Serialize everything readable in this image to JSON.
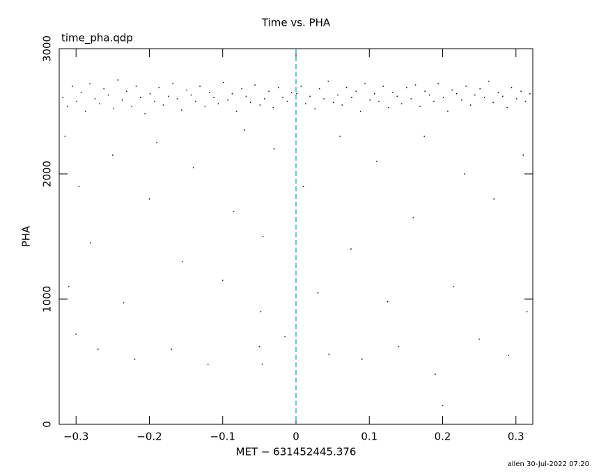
{
  "chart_data": {
    "type": "scatter",
    "title": "Time vs. PHA",
    "annotation": "time_pha.qdp",
    "x_label": "MET − 631452445.376",
    "y_label": "PHA",
    "footer": "allen 30-Jul-2022 07:20",
    "xlim": [
      -0.323,
      0.323
    ],
    "ylim": [
      0,
      3000
    ],
    "xticks": [
      {
        "value": -0.3,
        "label": "−0.3"
      },
      {
        "value": -0.2,
        "label": "−0.2"
      },
      {
        "value": -0.1,
        "label": "−0.1"
      },
      0,
      0.1,
      0.2,
      0.3
    ],
    "yticks": [
      0,
      1000,
      2000,
      3000
    ],
    "reference_line": {
      "x": 0,
      "color": "#1a9aa8"
    },
    "series": [
      {
        "color": "#000000",
        "x": [
          -0.318,
          -0.312,
          -0.305,
          -0.299,
          -0.293,
          -0.287,
          -0.281,
          -0.274,
          -0.268,
          -0.262,
          -0.256,
          -0.249,
          -0.243,
          -0.237,
          -0.231,
          -0.224,
          -0.218,
          -0.212,
          -0.206,
          -0.199,
          -0.193,
          -0.187,
          -0.181,
          -0.174,
          -0.168,
          -0.162,
          -0.156,
          -0.149,
          -0.143,
          -0.137,
          -0.131,
          -0.124,
          -0.118,
          -0.112,
          -0.106,
          -0.099,
          -0.093,
          -0.087,
          -0.081,
          -0.074,
          -0.068,
          -0.062,
          -0.056,
          -0.049,
          -0.043,
          -0.037,
          -0.031,
          -0.024,
          -0.018,
          -0.012,
          -0.006,
          0.001,
          0.007,
          0.013,
          0.019,
          0.026,
          0.032,
          0.038,
          0.044,
          0.051,
          0.057,
          0.063,
          0.069,
          0.076,
          0.082,
          0.088,
          0.094,
          0.101,
          0.107,
          0.113,
          0.119,
          0.126,
          0.132,
          0.138,
          0.144,
          0.151,
          0.157,
          0.163,
          0.169,
          0.176,
          0.182,
          0.188,
          0.194,
          0.201,
          0.207,
          0.213,
          0.219,
          0.226,
          0.232,
          0.238,
          0.244,
          0.251,
          0.257,
          0.263,
          0.269,
          0.276,
          0.282,
          0.288,
          0.294,
          0.301,
          0.307,
          0.313,
          0.319,
          -0.315,
          -0.296,
          -0.28,
          -0.31,
          -0.3,
          -0.27,
          -0.25,
          -0.235,
          -0.22,
          -0.2,
          -0.19,
          -0.17,
          -0.155,
          -0.14,
          -0.12,
          -0.1,
          -0.085,
          -0.07,
          -0.05,
          -0.048,
          -0.046,
          -0.045,
          -0.03,
          -0.015,
          0.01,
          0.03,
          0.045,
          0.06,
          0.075,
          0.09,
          0.11,
          0.125,
          0.14,
          0.16,
          0.175,
          0.19,
          0.2,
          0.215,
          0.23,
          0.25,
          0.27,
          0.29,
          0.31,
          0.315
        ],
        "values": [
          2610,
          2540,
          2700,
          2580,
          2650,
          2500,
          2720,
          2600,
          2560,
          2680,
          2630,
          2520,
          2750,
          2590,
          2660,
          2540,
          2700,
          2610,
          2480,
          2640,
          2580,
          2690,
          2550,
          2620,
          2720,
          2600,
          2510,
          2670,
          2630,
          2580,
          2700,
          2540,
          2650,
          2610,
          2560,
          2730,
          2590,
          2640,
          2500,
          2680,
          2620,
          2570,
          2710,
          2550,
          2600,
          2660,
          2530,
          2690,
          2610,
          2580,
          2650,
          2640,
          2700,
          2560,
          2620,
          2520,
          2680,
          2600,
          2740,
          2570,
          2630,
          2550,
          2690,
          2610,
          2660,
          2500,
          2720,
          2590,
          2640,
          2580,
          2700,
          2530,
          2650,
          2620,
          2560,
          2690,
          2600,
          2710,
          2540,
          2660,
          2630,
          2580,
          2720,
          2610,
          2500,
          2670,
          2640,
          2590,
          2700,
          2550,
          2630,
          2680,
          2610,
          2740,
          2570,
          2650,
          2620,
          2530,
          2690,
          2600,
          2660,
          2580,
          2640,
          2300,
          1900,
          1450,
          1100,
          720,
          600,
          2150,
          970,
          520,
          1800,
          2250,
          600,
          1300,
          2050,
          480,
          1150,
          1700,
          2350,
          620,
          900,
          480,
          1500,
          2200,
          700,
          1900,
          1050,
          560,
          2300,
          1400,
          520,
          2100,
          980,
          620,
          1650,
          2300,
          400,
          150,
          1100,
          2000,
          680,
          1800,
          550,
          2150,
          900
        ]
      }
    ]
  }
}
